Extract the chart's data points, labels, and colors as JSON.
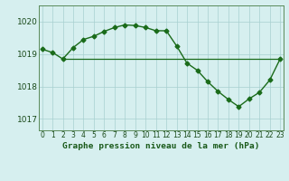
{
  "title": "Graphe pression niveau de la mer (hPa)",
  "series1": {
    "x": [
      0,
      1,
      2,
      3,
      4,
      5,
      6,
      7,
      8,
      9,
      10,
      11,
      12,
      13,
      14,
      15,
      16,
      17,
      18,
      19,
      20,
      21,
      22,
      23
    ],
    "y": [
      1019.15,
      1019.05,
      1018.85,
      1019.2,
      1019.45,
      1019.55,
      1019.7,
      1019.82,
      1019.9,
      1019.88,
      1019.82,
      1019.72,
      1019.72,
      1019.25,
      1018.72,
      1018.5,
      1018.15,
      1017.85,
      1017.6,
      1017.38,
      1017.62,
      1017.82,
      1018.2,
      1018.85
    ],
    "color": "#1a6b1a",
    "marker": "D",
    "markersize": 2.5,
    "linewidth": 1.0
  },
  "series2": {
    "x": [
      2,
      14,
      23
    ],
    "y": [
      1018.85,
      1018.85,
      1018.85
    ],
    "color": "#1a6b1a",
    "linewidth": 0.9
  },
  "ylim": [
    1016.65,
    1020.5
  ],
  "yticks": [
    1017,
    1018,
    1019,
    1020
  ],
  "xlim": [
    -0.3,
    23.3
  ],
  "xticks": [
    0,
    1,
    2,
    3,
    4,
    5,
    6,
    7,
    8,
    9,
    10,
    11,
    12,
    13,
    14,
    15,
    16,
    17,
    18,
    19,
    20,
    21,
    22,
    23
  ],
  "bg_color": "#d6efef",
  "grid_color": "#a8d0d0",
  "text_color": "#1a4a1a",
  "title_color": "#1a5a1a",
  "axis_color": "#5a8a5a"
}
